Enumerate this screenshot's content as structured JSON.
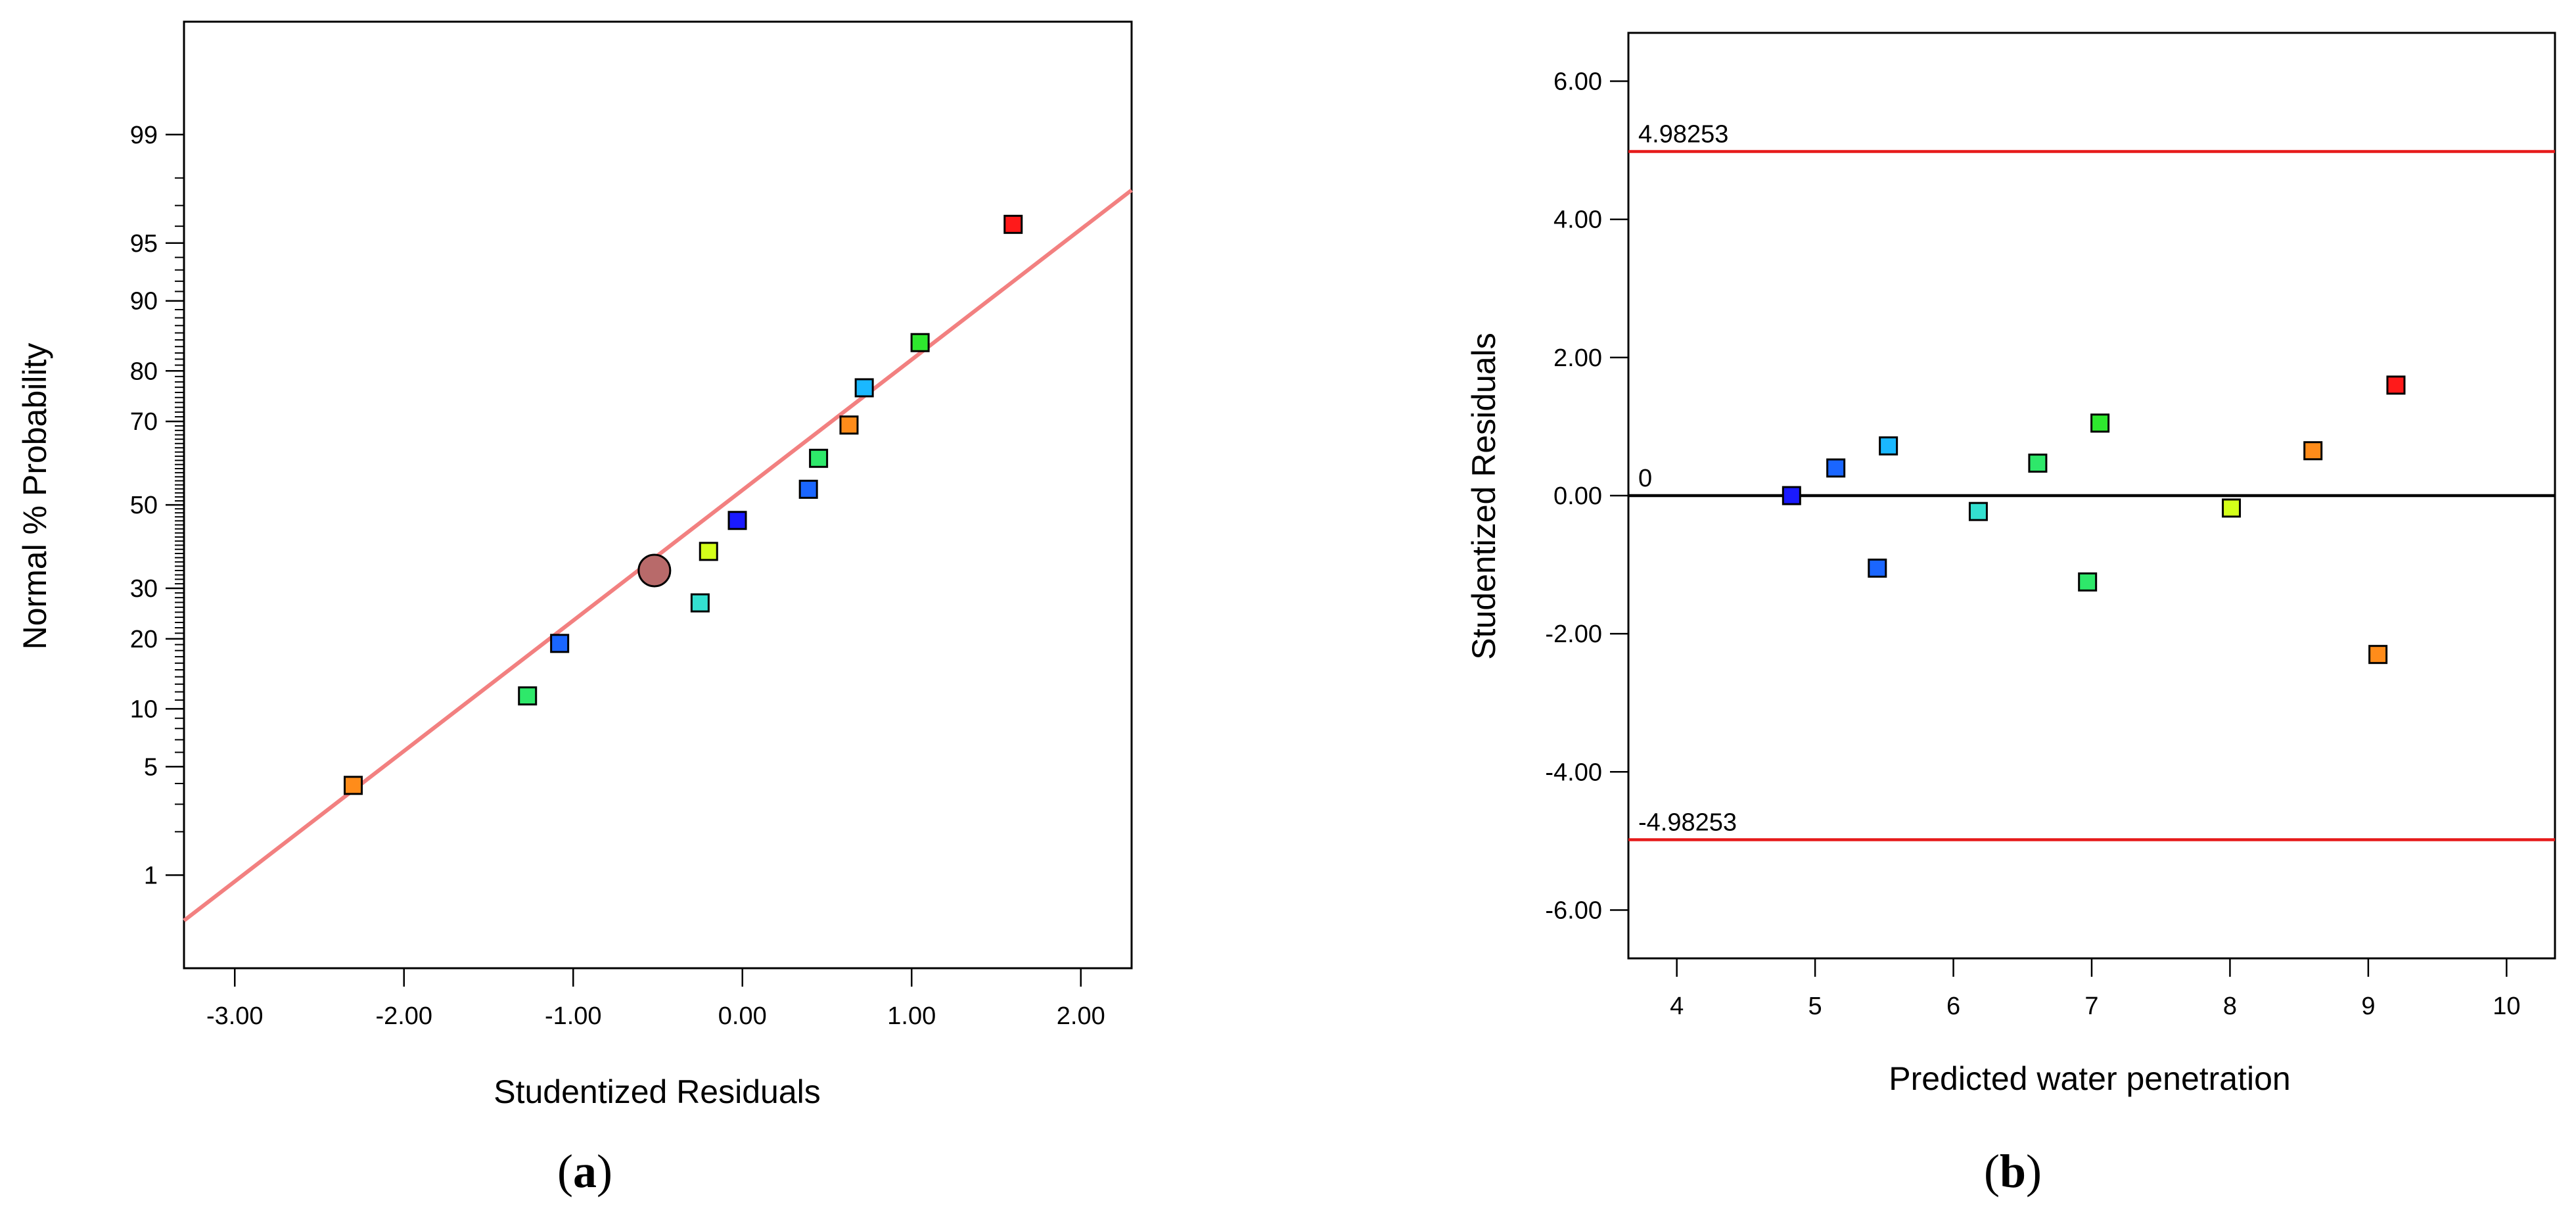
{
  "chart_data": [
    {
      "type": "scatter",
      "panel": "a",
      "xlabel": "Studentized Residuals",
      "ylabel": "Normal % Probability",
      "xlim": [
        -3.3,
        2.3
      ],
      "x_ticks": [
        -3,
        -2,
        -1,
        0,
        1,
        2
      ],
      "x_tick_labels": [
        "-3.00",
        "-2.00",
        "-1.00",
        "0.00",
        "1.00",
        "2.00"
      ],
      "y_scale": "normal-probability",
      "ylim": [
        0.18,
        99.88
      ],
      "y_tick_labels": [
        {
          "p": 1,
          "label": "1"
        },
        {
          "p": 5,
          "label": "5"
        },
        {
          "p": 10,
          "label": "10"
        },
        {
          "p": 20,
          "label": "20"
        },
        {
          "p": 30,
          "label": "30"
        },
        {
          "p": 50,
          "label": "50"
        },
        {
          "p": 70,
          "label": "70"
        },
        {
          "p": 80,
          "label": "80"
        },
        {
          "p": 90,
          "label": "90"
        },
        {
          "p": 95,
          "label": "95"
        },
        {
          "p": 99,
          "label": "99"
        }
      ],
      "fit_line": {
        "x": [
          -3.3,
          2.3
        ],
        "p": [
          0.45,
          97.6
        ],
        "color": "#f28080"
      },
      "points": [
        {
          "x": -2.3,
          "p": 3.9,
          "color": "#ff8c1a",
          "marker": "square"
        },
        {
          "x": -1.27,
          "p": 11.5,
          "color": "#2ee86a",
          "marker": "square"
        },
        {
          "x": -1.08,
          "p": 19.2,
          "color": "#1a66ff",
          "marker": "square"
        },
        {
          "x": -0.52,
          "p": 34.0,
          "color": "#b86a6a",
          "marker": "circle"
        },
        {
          "x": -0.25,
          "p": 26.9,
          "color": "#33e0d0",
          "marker": "square"
        },
        {
          "x": -0.2,
          "p": 38.5,
          "color": "#d4ff1a",
          "marker": "square"
        },
        {
          "x": -0.03,
          "p": 46.1,
          "color": "#1a1aff",
          "marker": "square"
        },
        {
          "x": 0.39,
          "p": 53.9,
          "color": "#1a66ff",
          "marker": "square"
        },
        {
          "x": 0.45,
          "p": 61.5,
          "color": "#2ee86a",
          "marker": "square"
        },
        {
          "x": 0.63,
          "p": 69.2,
          "color": "#ff8c1a",
          "marker": "square"
        },
        {
          "x": 0.72,
          "p": 76.9,
          "color": "#1ab8ff",
          "marker": "square"
        },
        {
          "x": 1.05,
          "p": 84.6,
          "color": "#2ee82e",
          "marker": "square"
        },
        {
          "x": 1.6,
          "p": 96.1,
          "color": "#ff1a1a",
          "marker": "square"
        }
      ]
    },
    {
      "type": "scatter",
      "panel": "b",
      "xlabel": "Predicted water penetration",
      "ylabel": "Studentized Residuals",
      "xlim": [
        3.65,
        10.35
      ],
      "ylim": [
        -6.7,
        6.7
      ],
      "x_ticks": [
        4,
        5,
        6,
        7,
        8,
        9,
        10
      ],
      "x_tick_labels": [
        "4",
        "5",
        "6",
        "7",
        "8",
        "9",
        "10"
      ],
      "y_ticks": [
        -6,
        -4,
        -2,
        0,
        2,
        4,
        6
      ],
      "y_tick_labels": [
        "-6.00",
        "-4.00",
        "-2.00",
        "0.00",
        "2.00",
        "4.00",
        "6.00"
      ],
      "reference_lines": [
        {
          "y": 4.98253,
          "label": "4.98253",
          "color": "#e61a1a"
        },
        {
          "y": 0,
          "label": "0",
          "color": "#000000"
        },
        {
          "y": -4.98253,
          "label": "-4.98253",
          "color": "#e61a1a"
        }
      ],
      "points": [
        {
          "x": 4.83,
          "y": 0.0,
          "color": "#1a1aff"
        },
        {
          "x": 5.15,
          "y": 0.4,
          "color": "#1a66ff"
        },
        {
          "x": 5.45,
          "y": -1.05,
          "color": "#1a66ff"
        },
        {
          "x": 5.53,
          "y": 0.72,
          "color": "#1ab8ff"
        },
        {
          "x": 6.18,
          "y": -0.23,
          "color": "#33e0d0"
        },
        {
          "x": 6.61,
          "y": 0.47,
          "color": "#2ee86a"
        },
        {
          "x": 6.97,
          "y": -1.25,
          "color": "#2ee86a"
        },
        {
          "x": 7.06,
          "y": 1.05,
          "color": "#2ee82e"
        },
        {
          "x": 8.01,
          "y": -0.18,
          "color": "#d4ff1a"
        },
        {
          "x": 8.6,
          "y": 0.65,
          "color": "#ff8c1a"
        },
        {
          "x": 9.07,
          "y": -2.3,
          "color": "#ff8c1a"
        },
        {
          "x": 9.2,
          "y": 1.6,
          "color": "#ff1a1a"
        }
      ]
    }
  ],
  "panel_labels": {
    "a": "a",
    "b": "b",
    "open": "(",
    "close": ")"
  }
}
